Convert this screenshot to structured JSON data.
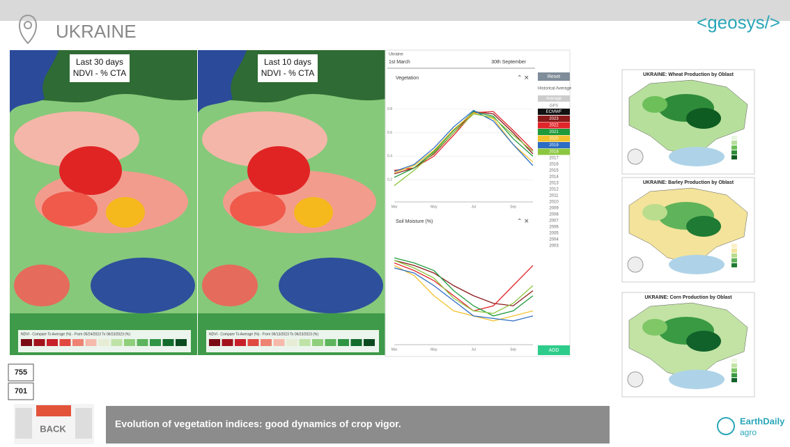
{
  "header": {
    "title": "UKRAINE",
    "logo": "<geosys/>"
  },
  "maps": [
    {
      "period": "Last 30 days",
      "index": "NDVI - % CTA",
      "legend": "NDVI - Compare To Average (%) - From 05/24/2023 To 06/23/2023 (%)"
    },
    {
      "period": "Last 10 days",
      "index": "NDVI - % CTA",
      "legend": "NDVI - Compare To Average (%) - From 06/13/2023 To 06/23/2023 (%)"
    }
  ],
  "panel": {
    "region": "Ukraine",
    "start": "1st March",
    "end": "30th September",
    "reset": "Reset",
    "add": "ADD",
    "historical": "Historical Average",
    "average": "Average",
    "gfs": "GFS",
    "ecmwf": "ECMWF",
    "other_years": [
      "2017",
      "2016",
      "2015",
      "2014",
      "2013",
      "2012",
      "2011",
      "2010",
      "2009",
      "2008",
      "2007",
      "2006",
      "2005",
      "2004",
      "2003"
    ]
  },
  "chart_data": [
    {
      "type": "line",
      "title": "Vegetation",
      "categories": [
        "Mar",
        null,
        "May",
        null,
        "Jul",
        null,
        "Sep",
        null
      ],
      "ylim": [
        0.1,
        0.9
      ],
      "yticks": [
        0.2,
        0.4,
        0.6,
        0.8
      ],
      "series": [
        {
          "name": "2023",
          "color": "#8b1a1a",
          "values": [
            0.25,
            0.3,
            0.42,
            0.6,
            0.78,
            0.76,
            0.6,
            0.42
          ]
        },
        {
          "name": "2022",
          "color": "#e0252b",
          "values": [
            0.28,
            0.3,
            0.4,
            0.58,
            0.77,
            0.78,
            0.62,
            0.45
          ]
        },
        {
          "name": "2021",
          "color": "#1e9a3c",
          "values": [
            0.22,
            0.3,
            0.44,
            0.62,
            0.78,
            0.74,
            0.55,
            0.4
          ]
        },
        {
          "name": "2020",
          "color": "#f2c12e",
          "values": [
            0.26,
            0.32,
            0.45,
            0.63,
            0.77,
            0.72,
            0.5,
            0.35
          ]
        },
        {
          "name": "2019",
          "color": "#2b6cc4",
          "values": [
            0.27,
            0.33,
            0.47,
            0.65,
            0.79,
            0.7,
            0.5,
            0.32
          ]
        },
        {
          "name": "2018",
          "color": "#8cc63f",
          "values": [
            0.15,
            0.28,
            0.43,
            0.6,
            0.76,
            0.73,
            0.58,
            0.44
          ]
        }
      ]
    },
    {
      "type": "line",
      "title": "Soil Moisture (%)",
      "categories": [
        "Mar",
        null,
        "May",
        null,
        "Jul",
        null,
        "Sep",
        null
      ],
      "ylim": [
        0,
        40
      ],
      "series": [
        {
          "color": "#8b1a1a",
          "values": [
            32,
            30,
            27,
            22,
            18,
            15,
            14,
            20
          ]
        },
        {
          "color": "#e0252b",
          "values": [
            31,
            28,
            24,
            18,
            12,
            14,
            22,
            30
          ]
        },
        {
          "color": "#1e9a3c",
          "values": [
            33,
            31,
            28,
            20,
            14,
            10,
            12,
            18
          ]
        },
        {
          "color": "#f2c12e",
          "values": [
            30,
            26,
            18,
            12,
            10,
            8,
            10,
            12
          ]
        },
        {
          "color": "#2b6cc4",
          "values": [
            29,
            27,
            22,
            16,
            10,
            9,
            8,
            10
          ]
        },
        {
          "color": "#8cc63f",
          "values": [
            32,
            29,
            25,
            17,
            12,
            11,
            15,
            22
          ]
        }
      ]
    }
  ],
  "production": [
    "UKRAINE: Wheat Production by Oblast",
    "UKRAINE: Barley Production by Oblast",
    "UKRAINE: Corn Production by Oblast"
  ],
  "counters": [
    "755",
    "701"
  ],
  "back": "BACK",
  "caption": "Evolution of vegetation indices: good dynamics of crop vigor.",
  "brand": {
    "name": "EarthDaily",
    "sub": "agro"
  }
}
